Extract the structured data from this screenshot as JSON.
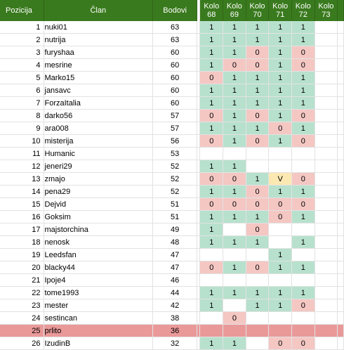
{
  "header": {
    "pos": "Pozicija",
    "name": "Član",
    "pts": "Bodovi",
    "rounds": [
      {
        "top": "Kolo",
        "num": "68"
      },
      {
        "top": "Kolo",
        "num": "69"
      },
      {
        "top": "Kolo",
        "num": "70"
      },
      {
        "top": "Kolo",
        "num": "71"
      },
      {
        "top": "Kolo",
        "num": "72"
      },
      {
        "top": "Kolo",
        "num": "73"
      }
    ]
  },
  "colors": {
    "header_bg": "#3a7a1e",
    "cell_one": "#b7e1cd",
    "cell_zero": "#f4c7c3",
    "cell_v": "#fce8b2",
    "highlight_row": "#ea9999"
  },
  "rows": [
    {
      "pos": "1",
      "name": "nuki01",
      "pts": "63",
      "k": [
        "1",
        "1",
        "1",
        "1",
        "1",
        ""
      ]
    },
    {
      "pos": "2",
      "name": "nutrija",
      "pts": "63",
      "k": [
        "1",
        "1",
        "1",
        "1",
        "1",
        ""
      ]
    },
    {
      "pos": "3",
      "name": "furyshaa",
      "pts": "60",
      "k": [
        "1",
        "1",
        "0",
        "1",
        "0",
        ""
      ]
    },
    {
      "pos": "4",
      "name": "mesrine",
      "pts": "60",
      "k": [
        "1",
        "0",
        "0",
        "1",
        "0",
        ""
      ]
    },
    {
      "pos": "5",
      "name": "Marko15",
      "pts": "60",
      "k": [
        "0",
        "1",
        "1",
        "1",
        "1",
        ""
      ]
    },
    {
      "pos": "6",
      "name": "jansavc",
      "pts": "60",
      "k": [
        "1",
        "1",
        "1",
        "1",
        "1",
        ""
      ]
    },
    {
      "pos": "7",
      "name": "ForzaItalia",
      "pts": "60",
      "k": [
        "1",
        "1",
        "1",
        "1",
        "1",
        ""
      ]
    },
    {
      "pos": "8",
      "name": "darko56",
      "pts": "57",
      "k": [
        "0",
        "1",
        "0",
        "1",
        "0",
        ""
      ]
    },
    {
      "pos": "9",
      "name": "ara008",
      "pts": "57",
      "k": [
        "1",
        "1",
        "1",
        "0",
        "1",
        ""
      ]
    },
    {
      "pos": "10",
      "name": "misterija",
      "pts": "56",
      "k": [
        "0",
        "1",
        "0",
        "1",
        "0",
        ""
      ]
    },
    {
      "pos": "11",
      "name": "Humanic",
      "pts": "53",
      "k": [
        "",
        "",
        "",
        "",
        "",
        ""
      ]
    },
    {
      "pos": "12",
      "name": "jeneri29",
      "pts": "52",
      "k": [
        "1",
        "1",
        "",
        "",
        "",
        ""
      ]
    },
    {
      "pos": "13",
      "name": "zmajo",
      "pts": "52",
      "k": [
        "0",
        "0",
        "1",
        "V",
        "0",
        ""
      ]
    },
    {
      "pos": "14",
      "name": "pena29",
      "pts": "52",
      "k": [
        "1",
        "1",
        "0",
        "1",
        "1",
        ""
      ]
    },
    {
      "pos": "15",
      "name": "Dejvid",
      "pts": "51",
      "k": [
        "0",
        "0",
        "0",
        "0",
        "0",
        ""
      ]
    },
    {
      "pos": "16",
      "name": "Goksim",
      "pts": "51",
      "k": [
        "1",
        "1",
        "1",
        "0",
        "1",
        ""
      ]
    },
    {
      "pos": "17",
      "name": "majstorchina",
      "pts": "49",
      "k": [
        "1",
        "",
        "0",
        "",
        "",
        ""
      ]
    },
    {
      "pos": "18",
      "name": "nenosk",
      "pts": "48",
      "k": [
        "1",
        "1",
        "1",
        "",
        "1",
        ""
      ]
    },
    {
      "pos": "19",
      "name": "Leedsfan",
      "pts": "47",
      "k": [
        "",
        "",
        "",
        "1",
        "",
        ""
      ]
    },
    {
      "pos": "20",
      "name": "blacky44",
      "pts": "47",
      "k": [
        "0",
        "1",
        "0",
        "1",
        "1",
        ""
      ]
    },
    {
      "pos": "21",
      "name": "Ipoje4",
      "pts": "46",
      "k": [
        "",
        "",
        "",
        "",
        "",
        ""
      ]
    },
    {
      "pos": "22",
      "name": "tome1993",
      "pts": "44",
      "k": [
        "1",
        "1",
        "1",
        "1",
        "1",
        ""
      ]
    },
    {
      "pos": "23",
      "name": "mester",
      "pts": "42",
      "k": [
        "1",
        "",
        "1",
        "1",
        "0",
        ""
      ]
    },
    {
      "pos": "24",
      "name": "sestincan",
      "pts": "38",
      "k": [
        "",
        "0",
        "",
        "",
        "",
        ""
      ]
    },
    {
      "pos": "25",
      "name": "prlito",
      "pts": "36",
      "k": [
        "",
        "",
        "",
        "",
        "",
        ""
      ],
      "highlight": true
    },
    {
      "pos": "26",
      "name": "IzudinB",
      "pts": "32",
      "k": [
        "1",
        "1",
        "",
        "0",
        "0",
        ""
      ]
    }
  ]
}
